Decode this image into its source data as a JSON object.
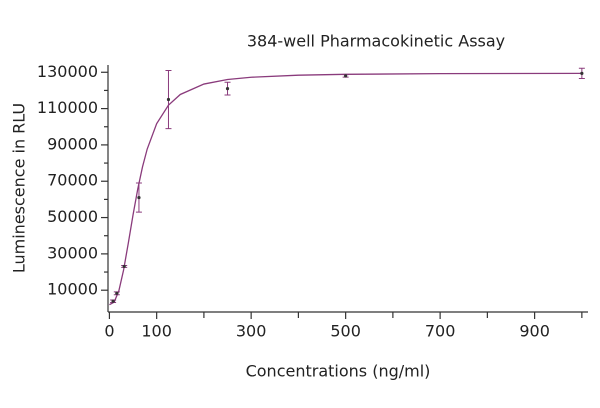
{
  "chart_data": {
    "type": "scatter",
    "title": "384-well Pharmacokinetic Assay",
    "x_label": "Concentrations (ng/ml)",
    "y_label": "Luminescence in RLU",
    "color": "#8a3b7c",
    "x": [
      7.8,
      15.6,
      31.25,
      62.5,
      125,
      250,
      500,
      1000
    ],
    "values": [
      3900,
      8300,
      23100,
      61000,
      115000,
      121000,
      128000,
      129400
    ],
    "errors": [
      700,
      800,
      500,
      8000,
      16000,
      3500,
      700,
      2800
    ],
    "fit": {
      "x": [
        0,
        10,
        20,
        30,
        40,
        50,
        60,
        70,
        80,
        100,
        125,
        150,
        200,
        250,
        300,
        400,
        500,
        700,
        1000
      ],
      "values": [
        2000,
        3430,
        9680,
        21150,
        35950,
        51470,
        65750,
        77870,
        87740,
        101700,
        111910,
        117770,
        123510,
        126000,
        127260,
        128400,
        128870,
        129230,
        129390
      ]
    },
    "xlim": [
      -3,
      1013
    ],
    "ylim": [
      -2000,
      134000
    ],
    "xticks": [
      0,
      100,
      300,
      500,
      700,
      900
    ],
    "x_minor_ticks": [
      200,
      400,
      600,
      800,
      1000
    ],
    "yticks": [
      10000,
      30000,
      50000,
      70000,
      90000,
      110000,
      130000
    ],
    "y_minor_ticks": [
      20000,
      40000,
      60000,
      80000,
      100000,
      120000
    ]
  }
}
